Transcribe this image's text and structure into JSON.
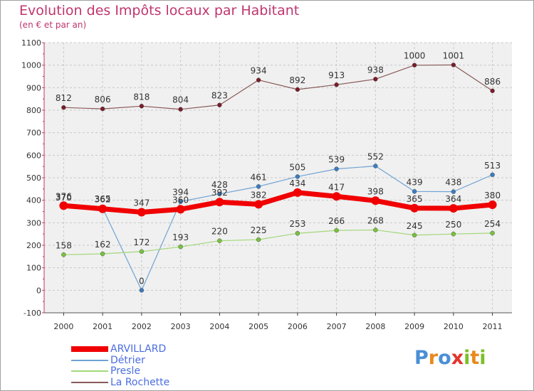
{
  "title": "Evolution des Impôts locaux par Habitant",
  "subtitle": "(en € et par an)",
  "logo": {
    "letters": [
      {
        "char": "P",
        "color": "#4a8fd6"
      },
      {
        "char": "r",
        "color": "#e88a1c"
      },
      {
        "char": "o",
        "color": "#4a8fd6"
      },
      {
        "char": "x",
        "color": "#e4352b"
      },
      {
        "char": "i",
        "color": "#7bbf2a"
      },
      {
        "char": "t",
        "color": "#e88a1c"
      },
      {
        "char": "i",
        "color": "#7bbf2a"
      }
    ]
  },
  "chart_data": {
    "type": "line",
    "title": "Evolution des Impôts locaux par Habitant",
    "subtitle": "(en € et par an)",
    "xlabel": "",
    "ylabel": "",
    "x": [
      "2000",
      "2001",
      "2002",
      "2003",
      "2004",
      "2005",
      "2006",
      "2007",
      "2008",
      "2009",
      "2010",
      "2011"
    ],
    "ylim": [
      -100,
      1100
    ],
    "yticks": [
      "-100",
      "0",
      "100",
      "200",
      "300",
      "400",
      "500",
      "600",
      "700",
      "800",
      "900",
      "1000",
      "1100"
    ],
    "grid": true,
    "legend_position": "bottom-left",
    "series": [
      {
        "name": "La Rochette",
        "color": "#7b1c2a",
        "line_color": "#8a5a5a",
        "width": 1.2,
        "marker": 3,
        "values": [
          812,
          806,
          818,
          804,
          823,
          934,
          892,
          913,
          938,
          1000,
          1001,
          886
        ],
        "labels": [
          "812",
          "806",
          "818",
          "804",
          "823",
          "934",
          "892",
          "913",
          "938",
          "1000",
          "1001",
          "886"
        ]
      },
      {
        "name": "Détrier",
        "color": "#3a7cc0",
        "line_color": "#6fa3d4",
        "width": 1.2,
        "marker": 3,
        "values": [
          370,
          365,
          0,
          394,
          428,
          461,
          505,
          539,
          552,
          439,
          438,
          513
        ],
        "labels": [
          "370",
          "365",
          "0",
          "394",
          "428",
          "461",
          "505",
          "539",
          "552",
          "439",
          "438",
          "513"
        ]
      },
      {
        "name": "Presle",
        "color": "#78c23c",
        "line_color": "#a2d879",
        "width": 1.2,
        "marker": 3,
        "values": [
          158,
          162,
          172,
          193,
          220,
          225,
          253,
          266,
          268,
          245,
          250,
          254
        ],
        "labels": [
          "158",
          "162",
          "172",
          "193",
          "220",
          "225",
          "253",
          "266",
          "268",
          "245",
          "250",
          "254"
        ]
      },
      {
        "name": "ARVILLARD",
        "color": "#f00000",
        "line_color": "#f00000",
        "width": 7,
        "marker": 6,
        "values": [
          376,
          362,
          347,
          360,
          392,
          382,
          434,
          417,
          398,
          365,
          364,
          380
        ],
        "labels": [
          "376",
          "362",
          "347",
          "360",
          "392",
          "382",
          "434",
          "417",
          "398",
          "365",
          "364",
          "380"
        ]
      }
    ]
  },
  "legend": [
    {
      "label": "ARVILLARD",
      "color": "#f00000",
      "thickness": 8
    },
    {
      "label": "Détrier",
      "color": "#6fa3d4",
      "thickness": 2
    },
    {
      "label": "Presle",
      "color": "#a2d879",
      "thickness": 2
    },
    {
      "label": "La Rochette",
      "color": "#8a5a5a",
      "thickness": 2
    }
  ]
}
